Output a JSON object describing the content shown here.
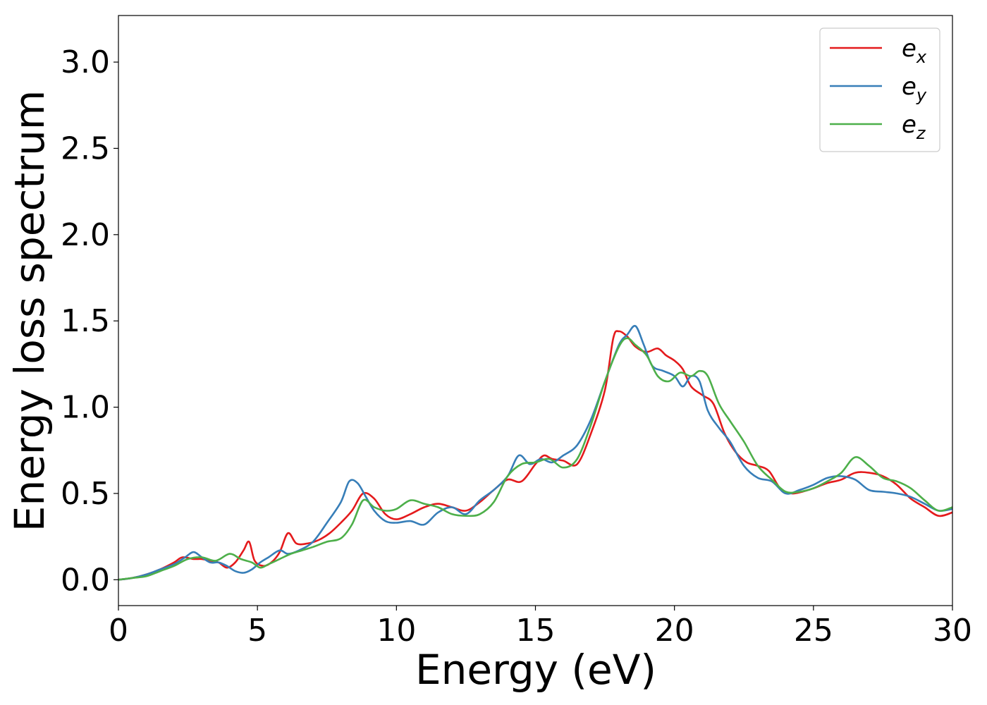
{
  "chart_data": {
    "type": "line",
    "xlabel": "Energy (eV)",
    "ylabel": "Energy loss spectrum",
    "xlim": [
      0,
      30
    ],
    "ylim": [
      -0.15,
      3.27
    ],
    "xticks": [
      0,
      5,
      10,
      15,
      20,
      25,
      30
    ],
    "xtick_labels": [
      "0",
      "5",
      "10",
      "15",
      "20",
      "25",
      "30"
    ],
    "yticks": [
      0.0,
      0.5,
      1.0,
      1.5,
      2.0,
      2.5,
      3.0
    ],
    "ytick_labels": [
      "0.0",
      "0.5",
      "1.0",
      "1.5",
      "2.0",
      "2.5",
      "3.0"
    ],
    "grid": false,
    "legend_position": "top-right",
    "series": [
      {
        "name": "e",
        "subscript": "x",
        "color": "#e41a1c",
        "x": [
          0,
          0.5,
          1,
          1.5,
          2,
          2.3,
          2.7,
          3.0,
          3.3,
          3.6,
          3.9,
          4.2,
          4.5,
          4.7,
          4.9,
          5.2,
          5.5,
          5.8,
          6.1,
          6.4,
          6.8,
          7.2,
          7.6,
          8.0,
          8.4,
          8.8,
          9.2,
          9.6,
          10.0,
          10.5,
          11.0,
          11.5,
          12.0,
          12.5,
          13.0,
          13.5,
          14.0,
          14.5,
          15.0,
          15.3,
          15.6,
          16.0,
          16.5,
          17.0,
          17.5,
          17.8,
          18.0,
          18.3,
          18.6,
          19.0,
          19.4,
          19.7,
          20.0,
          20.3,
          20.6,
          21.0,
          21.4,
          21.8,
          22.2,
          22.6,
          23.0,
          23.4,
          23.8,
          24.2,
          24.6,
          25.0,
          25.5,
          26.0,
          26.5,
          27.0,
          27.5,
          28.0,
          28.5,
          29.0,
          29.5,
          30.0
        ],
        "y": [
          0,
          0.01,
          0.03,
          0.06,
          0.1,
          0.13,
          0.12,
          0.12,
          0.11,
          0.1,
          0.07,
          0.1,
          0.17,
          0.22,
          0.11,
          0.08,
          0.1,
          0.16,
          0.27,
          0.21,
          0.21,
          0.23,
          0.27,
          0.33,
          0.4,
          0.5,
          0.47,
          0.38,
          0.35,
          0.38,
          0.42,
          0.44,
          0.42,
          0.4,
          0.45,
          0.52,
          0.58,
          0.57,
          0.67,
          0.72,
          0.7,
          0.69,
          0.67,
          0.85,
          1.1,
          1.4,
          1.44,
          1.41,
          1.35,
          1.32,
          1.34,
          1.3,
          1.27,
          1.22,
          1.12,
          1.07,
          1.02,
          0.85,
          0.74,
          0.68,
          0.66,
          0.63,
          0.53,
          0.5,
          0.51,
          0.53,
          0.56,
          0.58,
          0.62,
          0.62,
          0.6,
          0.55,
          0.47,
          0.42,
          0.37,
          0.39
        ]
      },
      {
        "name": "e",
        "subscript": "y",
        "color": "#377eb8",
        "x": [
          0,
          0.5,
          1,
          1.5,
          2,
          2.4,
          2.7,
          3.0,
          3.3,
          3.6,
          3.9,
          4.2,
          4.5,
          4.8,
          5.1,
          5.4,
          5.8,
          6.1,
          6.5,
          7.0,
          7.5,
          8.0,
          8.3,
          8.6,
          8.9,
          9.2,
          9.6,
          10.0,
          10.5,
          11.0,
          11.5,
          12.0,
          12.5,
          13.0,
          13.5,
          14.0,
          14.4,
          14.8,
          15.2,
          15.6,
          16.0,
          16.5,
          17.0,
          17.5,
          18.0,
          18.3,
          18.6,
          18.9,
          19.2,
          19.6,
          20.0,
          20.3,
          20.6,
          20.9,
          21.2,
          21.6,
          22.0,
          22.5,
          23.0,
          23.5,
          24.0,
          24.5,
          25.0,
          25.5,
          26.0,
          26.5,
          27.0,
          27.5,
          28.0,
          28.5,
          29.0,
          29.5,
          30.0
        ],
        "y": [
          0,
          0.01,
          0.03,
          0.06,
          0.09,
          0.13,
          0.16,
          0.13,
          0.1,
          0.1,
          0.08,
          0.05,
          0.04,
          0.06,
          0.1,
          0.13,
          0.17,
          0.15,
          0.17,
          0.22,
          0.33,
          0.45,
          0.57,
          0.56,
          0.48,
          0.4,
          0.34,
          0.33,
          0.34,
          0.32,
          0.39,
          0.42,
          0.38,
          0.46,
          0.52,
          0.6,
          0.72,
          0.67,
          0.7,
          0.68,
          0.72,
          0.78,
          0.93,
          1.15,
          1.36,
          1.42,
          1.47,
          1.36,
          1.24,
          1.21,
          1.18,
          1.12,
          1.18,
          1.15,
          0.98,
          0.88,
          0.8,
          0.66,
          0.59,
          0.57,
          0.5,
          0.52,
          0.55,
          0.59,
          0.6,
          0.58,
          0.52,
          0.51,
          0.5,
          0.48,
          0.44,
          0.4,
          0.41
        ]
      },
      {
        "name": "e",
        "subscript": "z",
        "color": "#4daf4a",
        "x": [
          0,
          0.5,
          1,
          1.5,
          2,
          2.5,
          3.0,
          3.5,
          4.0,
          4.4,
          4.8,
          5.1,
          5.4,
          5.8,
          6.2,
          6.6,
          7.0,
          7.5,
          8.0,
          8.4,
          8.8,
          9.2,
          9.6,
          10.0,
          10.5,
          11.0,
          11.5,
          12.0,
          12.5,
          13.0,
          13.5,
          14.0,
          14.5,
          15.0,
          15.5,
          16.0,
          16.5,
          17.0,
          17.5,
          18.0,
          18.3,
          18.6,
          19.0,
          19.4,
          19.8,
          20.2,
          20.6,
          20.9,
          21.2,
          21.6,
          22.0,
          22.5,
          23.0,
          23.5,
          24.0,
          24.5,
          25.0,
          25.5,
          26.0,
          26.5,
          27.0,
          27.5,
          28.0,
          28.5,
          29.0,
          29.5,
          30.0
        ],
        "y": [
          0,
          0.01,
          0.02,
          0.05,
          0.08,
          0.12,
          0.13,
          0.11,
          0.15,
          0.12,
          0.1,
          0.07,
          0.09,
          0.12,
          0.15,
          0.17,
          0.19,
          0.22,
          0.24,
          0.32,
          0.46,
          0.42,
          0.4,
          0.41,
          0.46,
          0.44,
          0.42,
          0.38,
          0.37,
          0.38,
          0.45,
          0.6,
          0.67,
          0.68,
          0.7,
          0.65,
          0.7,
          0.9,
          1.15,
          1.35,
          1.4,
          1.36,
          1.3,
          1.18,
          1.15,
          1.2,
          1.18,
          1.21,
          1.18,
          1.02,
          0.92,
          0.8,
          0.66,
          0.58,
          0.51,
          0.51,
          0.53,
          0.57,
          0.62,
          0.71,
          0.66,
          0.59,
          0.57,
          0.53,
          0.46,
          0.4,
          0.42
        ]
      }
    ]
  }
}
